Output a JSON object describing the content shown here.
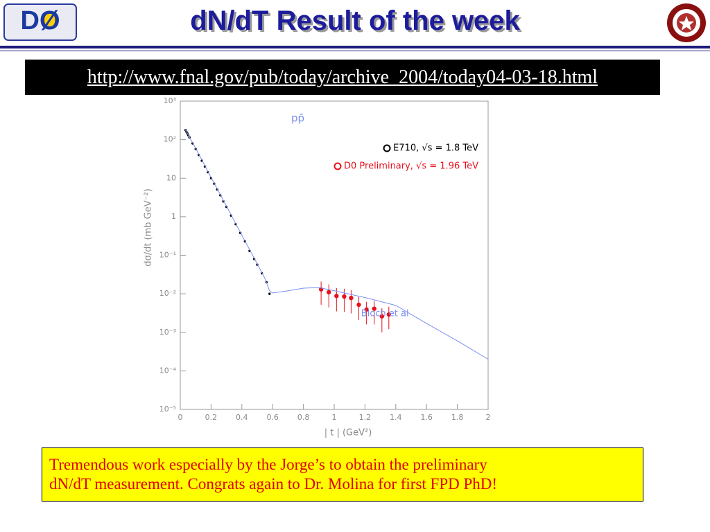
{
  "header": {
    "title": "dN/dT Result of the week",
    "logo": "DØ"
  },
  "link": "http://www.fnal.gov/pub/today/archive_2004/today04-03-18.html",
  "chart_data": {
    "type": "scatter",
    "annotation": "pp̄",
    "xlabel": "| t | (GeV²)",
    "ylabel": "dσ/dt (mb GeV⁻²)",
    "log_y": true,
    "xlim": [
      0,
      2
    ],
    "xticks": [
      0,
      0.2,
      0.4,
      0.6,
      0.8,
      1,
      1.2,
      1.4,
      1.6,
      1.8,
      2
    ],
    "ylim": [
      1e-05,
      1000
    ],
    "yticks": [
      {
        "value": 1e-05,
        "label": "10⁻⁵"
      },
      {
        "value": 0.0001,
        "label": "10⁻⁴"
      },
      {
        "value": 0.001,
        "label": "10⁻³"
      },
      {
        "value": 0.01,
        "label": "10⁻²"
      },
      {
        "value": 0.1,
        "label": "10⁻¹"
      },
      1,
      10,
      {
        "value": 100,
        "label": "10²"
      },
      {
        "value": 1000,
        "label": "10³"
      }
    ],
    "series": [
      {
        "name": "E710, √s = 1.8 TeV",
        "color": "#000000",
        "mode": "markers",
        "x": [
          0.034,
          0.04,
          0.046,
          0.052,
          0.06,
          0.08,
          0.1,
          0.12,
          0.14,
          0.16,
          0.18,
          0.2,
          0.22,
          0.24,
          0.26,
          0.28,
          0.3,
          0.33,
          0.36,
          0.39,
          0.42,
          0.45,
          0.48,
          0.5,
          0.53,
          0.56,
          0.58
        ],
        "values": [
          178,
          160,
          145,
          130,
          114,
          80,
          57,
          40,
          28.5,
          20,
          14.3,
          10,
          7.2,
          5.1,
          3.6,
          2.5,
          1.8,
          1.07,
          0.64,
          0.38,
          0.23,
          0.13,
          0.08,
          0.057,
          0.034,
          0.02,
          0.01
        ]
      },
      {
        "name": "D0 Preliminary, √s = 1.96 TeV",
        "color": "#e8101c",
        "mode": "markers",
        "x": [
          0.915,
          0.965,
          1.015,
          1.065,
          1.11,
          1.16,
          1.21,
          1.26,
          1.31,
          1.355
        ],
        "values": [
          0.013,
          0.011,
          0.0088,
          0.0085,
          0.0078,
          0.0052,
          0.0039,
          0.0041,
          0.0026,
          0.0029
        ],
        "errors": [
          0.0078,
          0.0066,
          0.0053,
          0.0051,
          0.0047,
          0.0031,
          0.0023,
          0.0025,
          0.0016,
          0.0017
        ]
      },
      {
        "name": "Bloch et al",
        "color": "#7b8ff0",
        "mode": "line",
        "x": [
          0.03,
          0.1,
          0.2,
          0.3,
          0.4,
          0.5,
          0.55,
          0.58,
          0.6,
          0.7,
          0.8,
          0.9,
          1,
          1.2,
          1.4,
          1.6,
          1.8,
          2
        ],
        "values": [
          190,
          60,
          10.5,
          1.9,
          0.33,
          0.06,
          0.025,
          0.012,
          0.0105,
          0.012,
          0.014,
          0.0145,
          0.012,
          0.008,
          0.005,
          0.0017,
          0.0006,
          0.0002
        ]
      }
    ]
  },
  "caption": [
    "Tremendous work especially by the Jorge’s to obtain the preliminary",
    "dN/dT measurement.  Congrats again to Dr. Molina for first FPD PhD!"
  ]
}
